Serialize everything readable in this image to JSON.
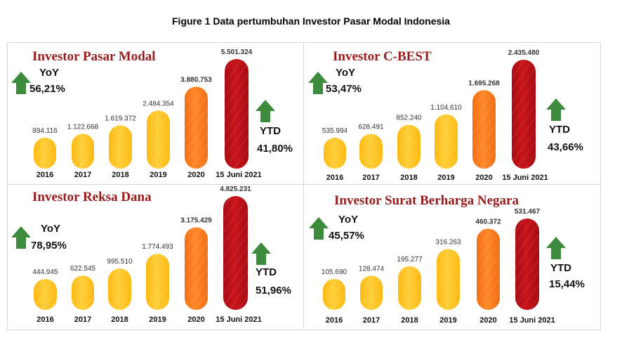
{
  "figure_title": "Figure 1 Data pertumbuhan Investor Pasar Modal Indonesia",
  "colors": {
    "title": "#9a1b1b",
    "arrow": "#3d8b3d",
    "bar_yellow": "#fdb913",
    "bar_orange": "#f36d14",
    "bar_red": "#a80c12"
  },
  "chart_data": [
    {
      "type": "bar",
      "title": "Investor Pasar Modal",
      "categories": [
        "2016",
        "2017",
        "2018",
        "2019",
        "2020",
        "15 Juni 2021"
      ],
      "values": [
        894116,
        1122668,
        1619372,
        2484354,
        3880753,
        5501324
      ],
      "value_labels": [
        "894.116",
        "1.122.668",
        "1.619.372",
        "2.484.354",
        "3.880.753",
        "5.501.324"
      ],
      "yoy_label": "YoY",
      "yoy_value": "56,21%",
      "ytd_label": "YTD",
      "ytd_value": "41,80%"
    },
    {
      "type": "bar",
      "title": "Investor C-BEST",
      "categories": [
        "2016",
        "2017",
        "2018",
        "2019",
        "2020",
        "15 Juni 2021"
      ],
      "values": [
        535994,
        628491,
        852240,
        1104610,
        1695268,
        2435480
      ],
      "value_labels": [
        "535.994",
        "628.491",
        "852.240",
        "1.104.610",
        "1.695.268",
        "2.435.480"
      ],
      "yoy_label": "YoY",
      "yoy_value": "53,47%",
      "ytd_label": "YTD",
      "ytd_value": "43,66%"
    },
    {
      "type": "bar",
      "title": "Investor Reksa Dana",
      "categories": [
        "2016",
        "2017",
        "2018",
        "2019",
        "2020",
        "15 Juni 2021"
      ],
      "values": [
        444945,
        622545,
        995510,
        1774493,
        3175429,
        4825231
      ],
      "value_labels": [
        "444.945",
        "622.545",
        "995.510",
        "1.774.493",
        "3.175.429",
        "4.825.231"
      ],
      "yoy_label": "YoY",
      "yoy_value": "78,95%",
      "ytd_label": "YTD",
      "ytd_value": "51,96%"
    },
    {
      "type": "bar",
      "title": "Investor Surat Berharga Negara",
      "categories": [
        "2016",
        "2017",
        "2018",
        "2019",
        "2020",
        "15 Juni 2021"
      ],
      "values": [
        105690,
        128474,
        195277,
        316263,
        460372,
        531467
      ],
      "value_labels": [
        "105.690",
        "128.474",
        "195.277",
        "316.263",
        "460.372",
        "531.467"
      ],
      "yoy_label": "YoY",
      "yoy_value": "45,57%",
      "ytd_label": "YTD",
      "ytd_value": "15,44%"
    }
  ]
}
